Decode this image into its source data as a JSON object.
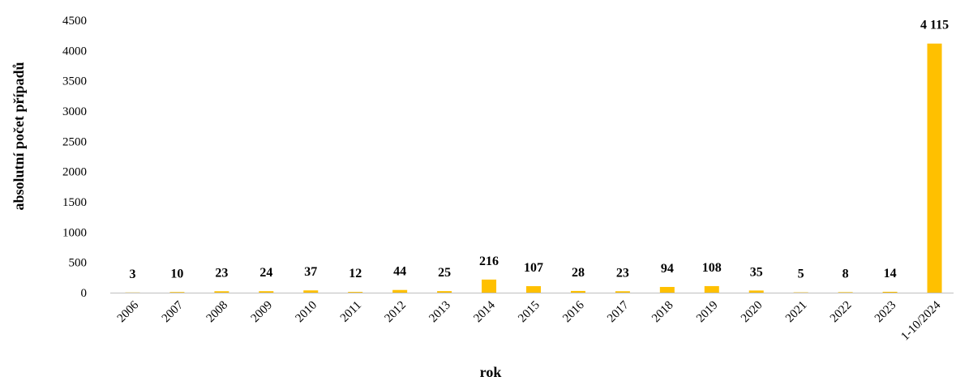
{
  "chart_data": {
    "type": "bar",
    "categories": [
      "2006",
      "2007",
      "2008",
      "2009",
      "2010",
      "2011",
      "2012",
      "2013",
      "2014",
      "2015",
      "2016",
      "2017",
      "2018",
      "2019",
      "2020",
      "2021",
      "2022",
      "2023",
      "1-10/2024"
    ],
    "values": [
      3,
      10,
      23,
      24,
      37,
      12,
      44,
      25,
      216,
      107,
      28,
      23,
      94,
      108,
      35,
      5,
      8,
      14,
      4115
    ],
    "data_labels": [
      "3",
      "10",
      "23",
      "24",
      "37",
      "12",
      "44",
      "25",
      "216",
      "107",
      "28",
      "23",
      "94",
      "108",
      "35",
      "5",
      "8",
      "14",
      "4 115"
    ],
    "xlabel": "rok",
    "ylabel": "absolutní počet případů",
    "ylim": [
      0,
      4500
    ],
    "yticks": [
      0,
      500,
      1000,
      1500,
      2000,
      2500,
      3000,
      3500,
      4000,
      4500
    ],
    "grid": false,
    "bar_color": "#FFC000"
  }
}
